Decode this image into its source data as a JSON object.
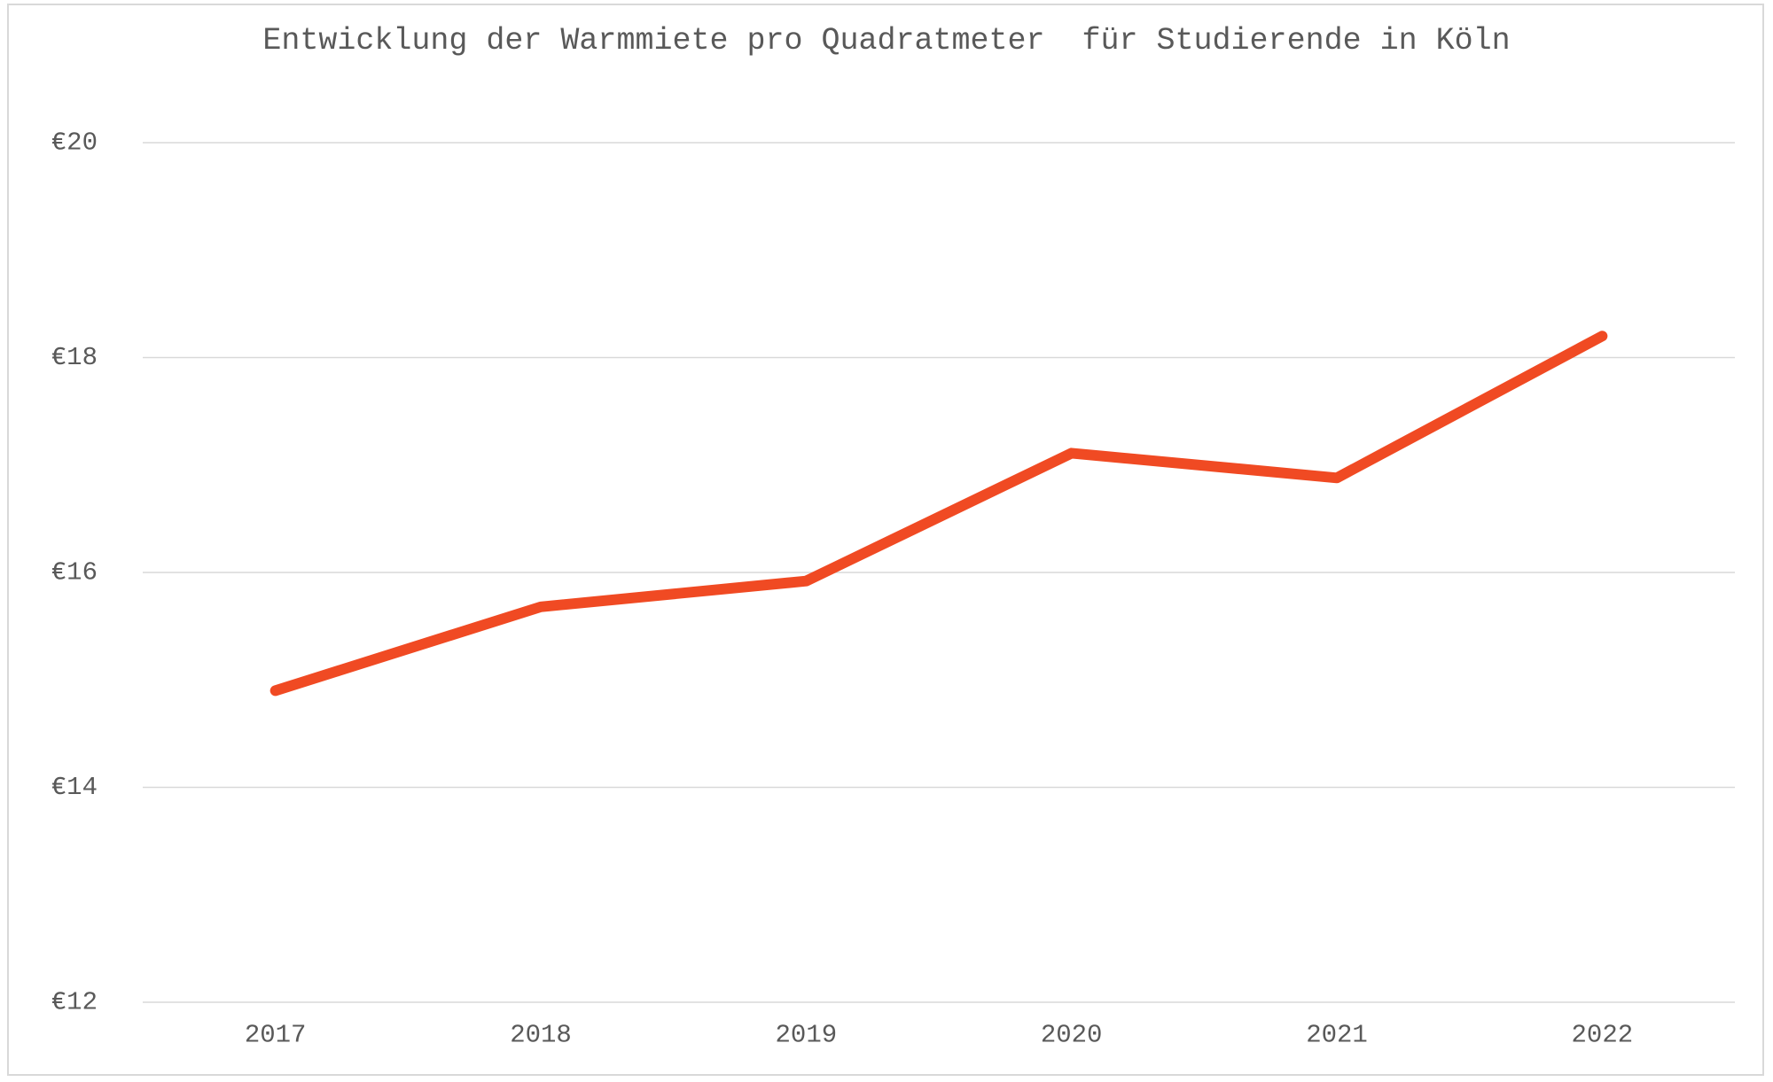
{
  "chart_data": {
    "type": "line",
    "title": "Entwicklung der Warmmiete pro Quadratmeter  für Studierende in Köln",
    "categories": [
      "2017",
      "2018",
      "2019",
      "2020",
      "2021",
      "2022"
    ],
    "series": [
      {
        "name": "Warmmiete pro Quadratmeter",
        "color": "#f04a23",
        "values": [
          14.9,
          15.68,
          15.92,
          17.11,
          16.88,
          18.2
        ]
      }
    ],
    "ylim": [
      12,
      20
    ],
    "yticks": [
      {
        "value": 12,
        "label": "€12"
      },
      {
        "value": 14,
        "label": "€14"
      },
      {
        "value": 16,
        "label": "€16"
      },
      {
        "value": 18,
        "label": "€18"
      },
      {
        "value": 20,
        "label": "€20"
      }
    ],
    "grid": true,
    "legend": false
  }
}
